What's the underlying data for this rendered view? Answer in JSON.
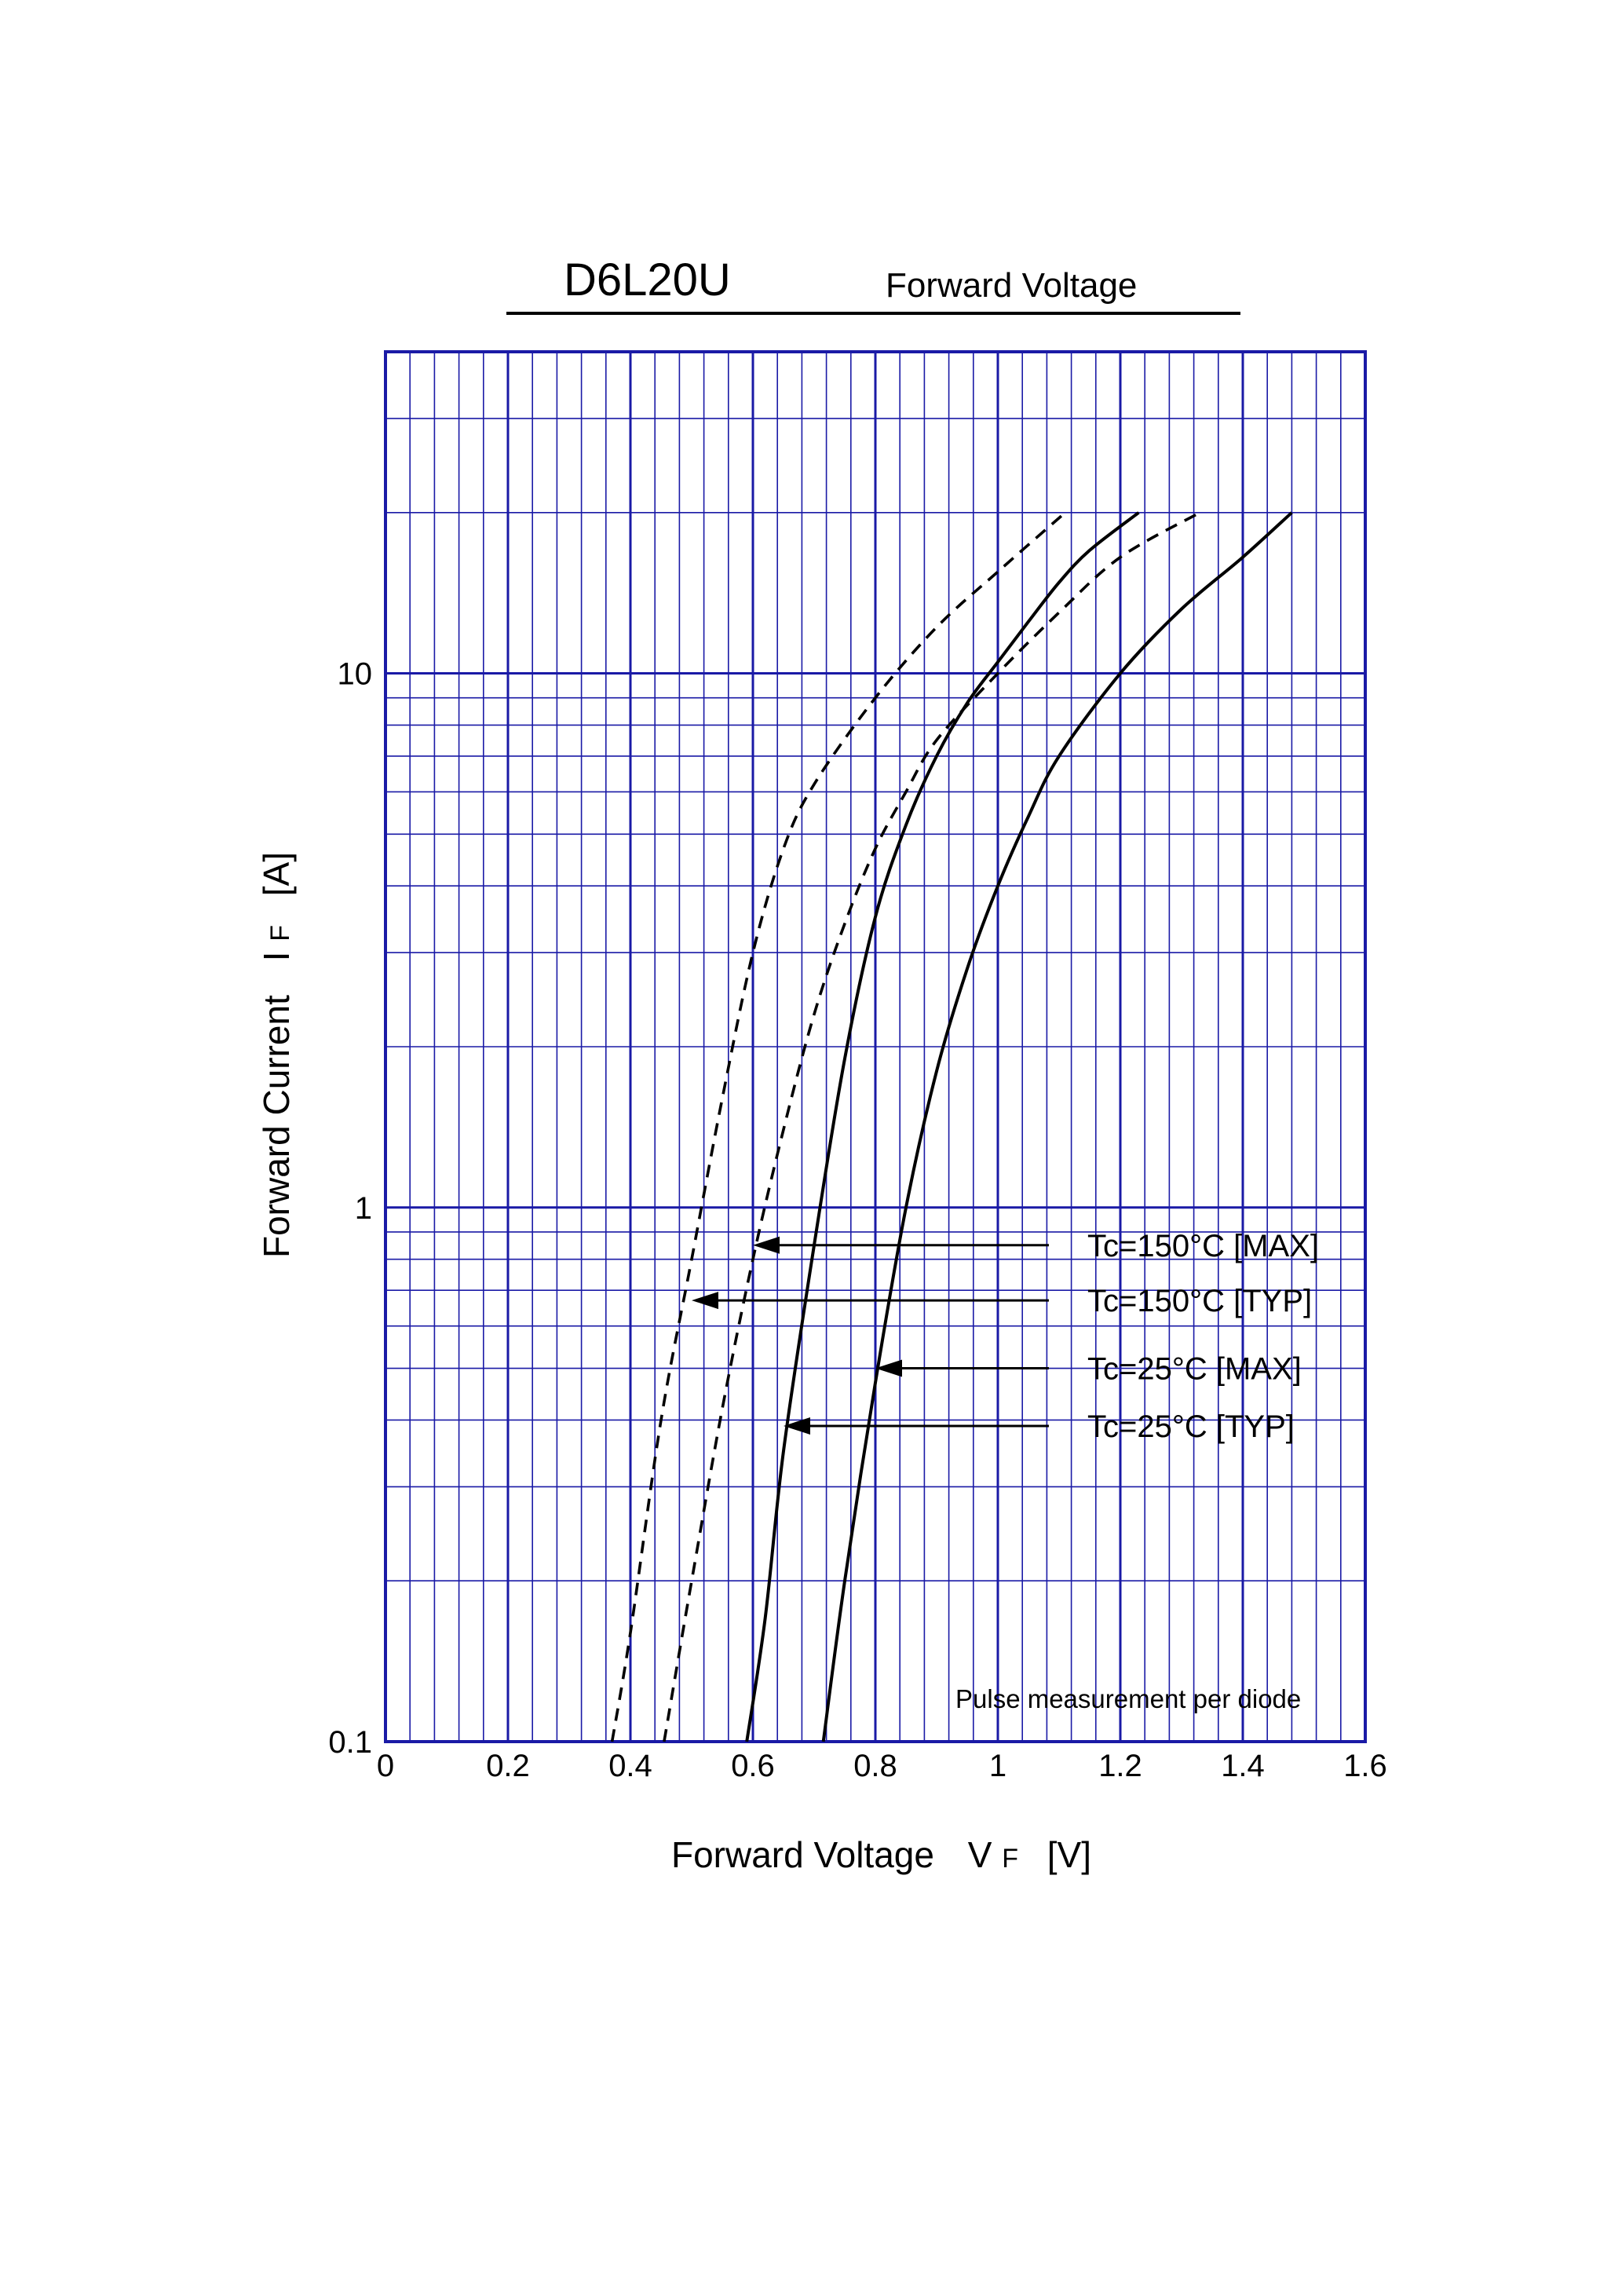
{
  "chart_data": {
    "type": "line",
    "title": "D6L20U",
    "subtitle": "Forward Voltage",
    "xlabel": {
      "main": "Forward Voltage",
      "symbol": "V",
      "sub": "F",
      "unit": "[V]"
    },
    "ylabel": {
      "main": "Forward Current",
      "symbol": "I",
      "sub": "F",
      "unit": "[A]"
    },
    "xlim": [
      0,
      1.6
    ],
    "ylim": [
      0.1,
      40
    ],
    "yscale": "log",
    "grid": true,
    "x_ticks": [
      "0",
      "0.2",
      "0.4",
      "0.6",
      "0.8",
      "1",
      "1.2",
      "1.4",
      "1.6"
    ],
    "y_ticks": [
      "0.1",
      "1",
      "10"
    ],
    "note": "Pulse measurement per diode",
    "series": [
      {
        "name": "Tc=150°C [MAX]",
        "style": "dashed",
        "x": [
          0.455,
          0.5,
          0.55,
          0.6,
          0.65,
          0.7,
          0.75,
          0.8,
          0.85,
          0.9,
          1.0,
          1.1,
          1.2,
          1.33
        ],
        "y": [
          0.1,
          0.2,
          0.42,
          0.8,
          1.4,
          2.3,
          3.4,
          4.7,
          6.0,
          7.5,
          10.0,
          13.0,
          16.5,
          20
        ]
      },
      {
        "name": "Tc=150°C [TYP]",
        "style": "dashed",
        "x": [
          0.37,
          0.4,
          0.45,
          0.5,
          0.55,
          0.6,
          0.65,
          0.7,
          0.8,
          0.9,
          1.0,
          1.11
        ],
        "y": [
          0.1,
          0.16,
          0.4,
          0.8,
          1.6,
          3.0,
          4.7,
          6.2,
          9.0,
          12.2,
          15.5,
          20
        ]
      },
      {
        "name": "Tc=25°C [MAX]",
        "style": "solid",
        "x": [
          0.715,
          0.75,
          0.8,
          0.85,
          0.9,
          0.95,
          1.0,
          1.05,
          1.1,
          1.2,
          1.3,
          1.4,
          1.48
        ],
        "y": [
          0.1,
          0.2,
          0.47,
          1.0,
          1.8,
          2.8,
          4.0,
          5.4,
          7.0,
          10.0,
          13.2,
          16.5,
          20
        ]
      },
      {
        "name": "Tc=25°C [TYP]",
        "style": "solid",
        "x": [
          0.59,
          0.62,
          0.65,
          0.7,
          0.75,
          0.8,
          0.85,
          0.9,
          0.95,
          1.0,
          1.05,
          1.1,
          1.15,
          1.23
        ],
        "y": [
          0.1,
          0.17,
          0.35,
          0.85,
          1.9,
          3.5,
          5.2,
          7.0,
          8.8,
          10.5,
          12.5,
          14.8,
          17.0,
          20
        ]
      }
    ],
    "annotations": [
      {
        "text": "Tc=150°C [MAX]",
        "series": 0,
        "x": 0.6,
        "y": 0.85
      },
      {
        "text": "Tc=150°C [TYP]",
        "series": 1,
        "x": 0.5,
        "y": 0.67
      },
      {
        "text": "Tc=25°C [MAX]",
        "series": 2,
        "x": 0.8,
        "y": 0.5
      },
      {
        "text": "Tc=25°C [TYP]",
        "series": 3,
        "x": 0.65,
        "y": 0.39
      }
    ],
    "colors": {
      "grid": "#1a1aa6",
      "curves": "#000000"
    }
  }
}
